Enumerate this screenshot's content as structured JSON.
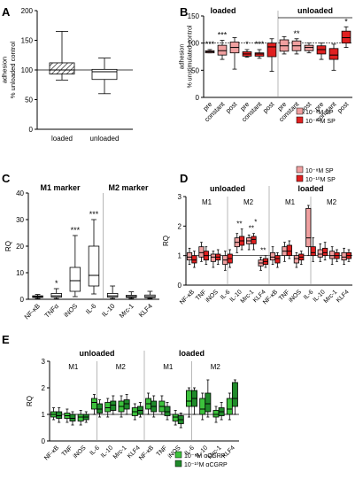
{
  "chart_data": [
    {
      "panel": "A",
      "type": "box",
      "ylabel": "adhesion\n% unloaded control",
      "ylim": [
        0,
        200
      ],
      "yticks": [
        "0",
        "50",
        "100",
        "150",
        "200"
      ],
      "categories": [
        "loaded",
        "unloaded"
      ],
      "boxes": [
        {
          "cat": "loaded",
          "min": 83,
          "q1": 93,
          "median": 100,
          "q3": 112,
          "max": 165,
          "hatch": true
        },
        {
          "cat": "unloaded",
          "min": 60,
          "q1": 84,
          "median": 97,
          "q3": 101,
          "max": 120,
          "hatch": false
        }
      ],
      "reference_line": 100
    },
    {
      "panel": "B",
      "type": "box",
      "ylabel": "adhesion\n% unstimulated control",
      "ylim": [
        0,
        150
      ],
      "yticks": [
        "0",
        "50",
        "100",
        "150"
      ],
      "groups": [
        "loaded",
        "unloaded"
      ],
      "xticks": [
        "pre",
        "constant",
        "post",
        "pre",
        "constant",
        "post",
        "pre",
        "constant",
        "post",
        "pre",
        "constant",
        "post"
      ],
      "series": [
        {
          "name": "10⁻⁸M SP",
          "color": "#f0a0a0"
        },
        {
          "name": "10⁻¹⁰M SP",
          "color": "#e02020"
        }
      ],
      "boxes": [
        {
          "min": 82,
          "q1": 82,
          "median": 84,
          "q3": 86,
          "max": 88,
          "s": 0
        },
        {
          "min": 70,
          "q1": 78,
          "median": 86,
          "q3": 96,
          "max": 105,
          "s": 0
        },
        {
          "min": 52,
          "q1": 82,
          "median": 92,
          "q3": 102,
          "max": 110,
          "s": 0
        },
        {
          "min": 74,
          "q1": 76,
          "median": 80,
          "q3": 84,
          "max": 88,
          "s": 1
        },
        {
          "min": 72,
          "q1": 76,
          "median": 80,
          "q3": 82,
          "max": 88,
          "s": 1
        },
        {
          "min": 48,
          "q1": 75,
          "median": 93,
          "q3": 100,
          "max": 108,
          "s": 1
        },
        {
          "min": 80,
          "q1": 85,
          "median": 95,
          "q3": 106,
          "max": 112,
          "s": 0
        },
        {
          "min": 80,
          "q1": 86,
          "median": 95,
          "q3": 104,
          "max": 108,
          "s": 0
        },
        {
          "min": 82,
          "q1": 86,
          "median": 92,
          "q3": 96,
          "max": 100,
          "s": 0
        },
        {
          "min": 70,
          "q1": 80,
          "median": 88,
          "q3": 95,
          "max": 100,
          "s": 1
        },
        {
          "min": 50,
          "q1": 70,
          "median": 78,
          "q3": 90,
          "max": 98,
          "s": 1
        },
        {
          "min": 92,
          "q1": 100,
          "median": 110,
          "q3": 122,
          "max": 130,
          "s": 1
        }
      ],
      "stars": [
        "***",
        "***",
        "",
        "*",
        "***",
        "",
        "",
        "**",
        "",
        "",
        "",
        "*"
      ],
      "reference_line": 100
    },
    {
      "panel": "C",
      "type": "box",
      "ylabel": "RQ",
      "ylim": [
        0,
        40
      ],
      "yticks": [
        "0",
        "10",
        "20",
        "30",
        "40"
      ],
      "group_titles": [
        "M1 marker",
        "M2 marker"
      ],
      "categories": [
        "NF-κB",
        "TNFα",
        "iNOS",
        "IL-6",
        "IL-10",
        "Mrc-1",
        "KLF4"
      ],
      "boxes": [
        {
          "min": 0.3,
          "q1": 0.7,
          "median": 1,
          "q3": 1.3,
          "max": 1.8
        },
        {
          "min": 0.3,
          "q1": 0.8,
          "median": 1.3,
          "q3": 2.2,
          "max": 4
        },
        {
          "min": 1,
          "q1": 3,
          "median": 7,
          "q3": 12,
          "max": 24
        },
        {
          "min": 2,
          "q1": 5,
          "median": 9,
          "q3": 20,
          "max": 30
        },
        {
          "min": 0.3,
          "q1": 0.8,
          "median": 1.3,
          "q3": 2.2,
          "max": 5
        },
        {
          "min": 0.3,
          "q1": 0.7,
          "median": 1,
          "q3": 1.5,
          "max": 2.8
        },
        {
          "min": 0.3,
          "q1": 0.6,
          "median": 1,
          "q3": 1.6,
          "max": 3
        }
      ],
      "stars": [
        "",
        "*",
        "***",
        "***",
        "",
        "",
        ""
      ]
    },
    {
      "panel": "D",
      "type": "box",
      "ylabel": "RQ",
      "ylim": [
        0,
        3
      ],
      "yticks": [
        "0",
        "1",
        "2",
        "3"
      ],
      "groups": [
        "unloaded",
        "loaded"
      ],
      "subgroups": [
        "M1",
        "M2",
        "M1",
        "M2"
      ],
      "xticks": [
        "NF-κB",
        "TNF",
        "iNOS",
        "IL-6",
        "IL-10",
        "Mrc-1",
        "KLF4",
        "NF-κB",
        "TNF",
        "iNOS",
        "IL-6",
        "IL-10",
        "Mrc-1",
        "KLF4"
      ],
      "series": [
        {
          "name": "10⁻⁸M SP",
          "color": "#f0a0a0"
        },
        {
          "name": "10⁻¹⁰M SP",
          "color": "#e02020"
        }
      ],
      "pairs": [
        [
          {
            "min": 0.7,
            "q1": 0.85,
            "median": 0.95,
            "q3": 1.1,
            "max": 1.25
          },
          {
            "min": 0.6,
            "q1": 0.75,
            "median": 0.85,
            "q3": 1.0,
            "max": 1.15
          }
        ],
        [
          {
            "min": 0.8,
            "q1": 0.95,
            "median": 1.1,
            "q3": 1.3,
            "max": 1.45
          },
          {
            "min": 0.7,
            "q1": 0.85,
            "median": 1.0,
            "q3": 1.15,
            "max": 1.3
          }
        ],
        [
          {
            "min": 0.6,
            "q1": 0.8,
            "median": 0.95,
            "q3": 1.05,
            "max": 1.15
          },
          {
            "min": 0.7,
            "q1": 0.85,
            "median": 0.95,
            "q3": 1.05,
            "max": 1.2
          }
        ],
        [
          {
            "min": 0.5,
            "q1": 0.7,
            "median": 0.85,
            "q3": 1.0,
            "max": 1.15
          },
          {
            "min": 0.6,
            "q1": 0.75,
            "median": 0.9,
            "q3": 1.05,
            "max": 1.2
          }
        ],
        [
          {
            "min": 1.1,
            "q1": 1.3,
            "median": 1.45,
            "q3": 1.6,
            "max": 1.75
          },
          {
            "min": 1.2,
            "q1": 1.35,
            "median": 1.5,
            "q3": 1.65,
            "max": 1.9
          }
        ],
        [
          {
            "min": 1.2,
            "q1": 1.4,
            "median": 1.5,
            "q3": 1.6,
            "max": 1.7
          },
          {
            "min": 1.2,
            "q1": 1.4,
            "median": 1.55,
            "q3": 1.65,
            "max": 1.75
          }
        ],
        [
          {
            "min": 0.5,
            "q1": 0.65,
            "median": 0.75,
            "q3": 0.85,
            "max": 0.95
          },
          {
            "min": 0.6,
            "q1": 0.7,
            "median": 0.8,
            "q3": 0.9,
            "max": 1.0
          }
        ],
        [
          {
            "min": 0.7,
            "q1": 0.85,
            "median": 0.95,
            "q3": 1.1,
            "max": 1.3
          },
          {
            "min": 0.6,
            "q1": 0.75,
            "median": 0.9,
            "q3": 1.0,
            "max": 1.1
          }
        ],
        [
          {
            "min": 0.8,
            "q1": 1.0,
            "median": 1.15,
            "q3": 1.3,
            "max": 1.45
          },
          {
            "min": 0.9,
            "q1": 1.0,
            "median": 1.15,
            "q3": 1.35,
            "max": 1.5
          }
        ],
        [
          {
            "min": 0.6,
            "q1": 0.75,
            "median": 0.9,
            "q3": 1.0,
            "max": 1.1
          },
          {
            "min": 0.7,
            "q1": 0.85,
            "median": 0.95,
            "q3": 1.05,
            "max": 1.15
          }
        ],
        [
          {
            "min": 1.0,
            "q1": 1.3,
            "median": 1.6,
            "q3": 2.6,
            "max": 2.7
          },
          {
            "min": 0.8,
            "q1": 1.0,
            "median": 1.1,
            "q3": 1.3,
            "max": 1.6
          }
        ],
        [
          {
            "min": 0.8,
            "q1": 0.95,
            "median": 1.05,
            "q3": 1.2,
            "max": 1.4
          },
          {
            "min": 0.85,
            "q1": 1.0,
            "median": 1.1,
            "q3": 1.25,
            "max": 1.45
          }
        ],
        [
          {
            "min": 0.7,
            "q1": 0.9,
            "median": 1.0,
            "q3": 1.15,
            "max": 1.3
          },
          {
            "min": 0.8,
            "q1": 0.9,
            "median": 1.0,
            "q3": 1.1,
            "max": 1.2
          }
        ],
        [
          {
            "min": 0.7,
            "q1": 0.85,
            "median": 0.95,
            "q3": 1.1,
            "max": 1.25
          },
          {
            "min": 0.8,
            "q1": 0.9,
            "median": 1.0,
            "q3": 1.1,
            "max": 1.2
          }
        ]
      ],
      "stars": [
        {
          "pair": 4,
          "text": "**"
        },
        {
          "pair": 5,
          "text": "**"
        },
        {
          "pair": 5,
          "text": "*"
        },
        {
          "pair": 6,
          "text": "**"
        }
      ],
      "reference_line": 1
    },
    {
      "panel": "E",
      "type": "box",
      "ylabel": "RQ",
      "ylim": [
        0,
        3
      ],
      "yticks": [
        "0",
        "1",
        "2",
        "3"
      ],
      "groups": [
        "unloaded",
        "loaded"
      ],
      "subgroups": [
        "M1",
        "M2",
        "M1",
        "M2"
      ],
      "xticks": [
        "NF-κB",
        "TNF",
        "iNOS",
        "IL-6",
        "IL-10",
        "Mrc-1",
        "KLF4",
        "NF-κB",
        "TNF",
        "iNOS",
        "IL-6",
        "IL-10",
        "Mrc-1",
        "KLF4"
      ],
      "series": [
        {
          "name": "10⁻⁸M αCGRP",
          "color": "#3cc23c"
        },
        {
          "name": "10⁻¹⁰M αCGRP",
          "color": "#1f8a2a"
        }
      ],
      "pairs": [
        [
          {
            "min": 0.8,
            "q1": 0.9,
            "median": 1.0,
            "q3": 1.1,
            "max": 1.25
          },
          {
            "min": 0.7,
            "q1": 0.85,
            "median": 0.95,
            "q3": 1.1,
            "max": 1.25
          }
        ],
        [
          {
            "min": 0.7,
            "q1": 0.85,
            "median": 0.95,
            "q3": 1.05,
            "max": 1.2
          },
          {
            "min": 0.6,
            "q1": 0.75,
            "median": 0.85,
            "q3": 1.0,
            "max": 1.1
          }
        ],
        [
          {
            "min": 0.6,
            "q1": 0.75,
            "median": 0.9,
            "q3": 1.0,
            "max": 1.15
          },
          {
            "min": 0.7,
            "q1": 0.8,
            "median": 0.9,
            "q3": 1.0,
            "max": 1.1
          }
        ],
        [
          {
            "min": 1.0,
            "q1": 1.2,
            "median": 1.45,
            "q3": 1.6,
            "max": 1.75
          },
          {
            "min": 0.9,
            "q1": 1.05,
            "median": 1.2,
            "q3": 1.4,
            "max": 1.55
          }
        ],
        [
          {
            "min": 0.9,
            "q1": 1.1,
            "median": 1.25,
            "q3": 1.45,
            "max": 1.6
          },
          {
            "min": 1.0,
            "q1": 1.15,
            "median": 1.35,
            "q3": 1.5,
            "max": 1.7
          }
        ],
        [
          {
            "min": 0.9,
            "q1": 1.1,
            "median": 1.3,
            "q3": 1.5,
            "max": 1.7
          },
          {
            "min": 1.0,
            "q1": 1.2,
            "median": 1.4,
            "q3": 1.55,
            "max": 1.75
          }
        ],
        [
          {
            "min": 0.8,
            "q1": 0.95,
            "median": 1.1,
            "q3": 1.25,
            "max": 1.4
          },
          {
            "min": 0.9,
            "q1": 1.0,
            "median": 1.15,
            "q3": 1.3,
            "max": 1.45
          }
        ],
        [
          {
            "min": 1.0,
            "q1": 1.2,
            "median": 1.4,
            "q3": 1.6,
            "max": 1.8
          },
          {
            "min": 0.9,
            "q1": 1.1,
            "median": 1.3,
            "q3": 1.5,
            "max": 1.7
          }
        ],
        [
          {
            "min": 1.0,
            "q1": 1.1,
            "median": 1.3,
            "q3": 1.5,
            "max": 1.7
          },
          {
            "min": 0.8,
            "q1": 0.95,
            "median": 1.1,
            "q3": 1.3,
            "max": 1.45
          }
        ],
        [
          {
            "min": 0.6,
            "q1": 0.75,
            "median": 0.9,
            "q3": 1.0,
            "max": 1.15
          },
          {
            "min": 0.5,
            "q1": 0.65,
            "median": 0.8,
            "q3": 0.95,
            "max": 1.05
          }
        ],
        [
          {
            "min": 0.9,
            "q1": 1.3,
            "median": 1.5,
            "q3": 1.9,
            "max": 2.0
          },
          {
            "min": 1.0,
            "q1": 1.3,
            "median": 1.6,
            "q3": 1.9,
            "max": 2.0
          }
        ],
        [
          {
            "min": 0.8,
            "q1": 1.0,
            "median": 1.2,
            "q3": 1.6,
            "max": 1.8
          },
          {
            "min": 0.9,
            "q1": 1.1,
            "median": 1.4,
            "q3": 1.8,
            "max": 2.3
          }
        ],
        [
          {
            "min": 0.7,
            "q1": 0.9,
            "median": 1.0,
            "q3": 1.15,
            "max": 1.3
          },
          {
            "min": 0.8,
            "q1": 0.95,
            "median": 1.1,
            "q3": 1.25,
            "max": 1.45
          }
        ],
        [
          {
            "min": 0.8,
            "q1": 1.0,
            "median": 1.2,
            "q3": 1.6,
            "max": 1.8
          },
          {
            "min": 1.0,
            "q1": 1.3,
            "median": 1.6,
            "q3": 2.2,
            "max": 2.3
          }
        ]
      ],
      "reference_line": 1
    }
  ]
}
